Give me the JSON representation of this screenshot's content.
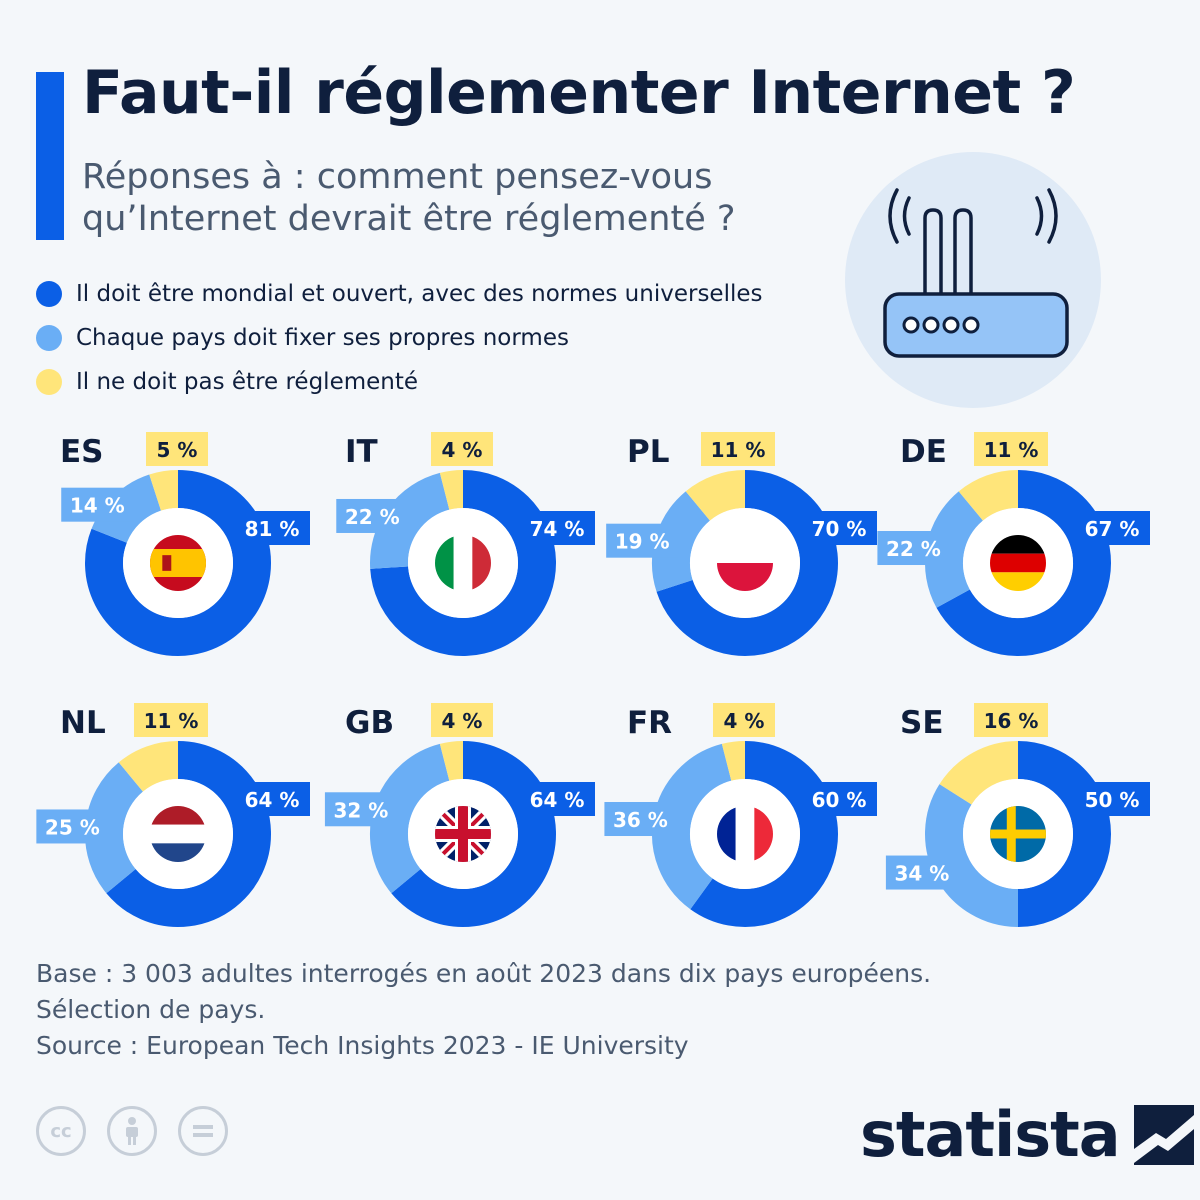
{
  "title": "Faut-il réglementer Internet ?",
  "subtitle": "Réponses à : comment pensez-vous qu’Internet devrait être réglementé ?",
  "colors": {
    "global": "#0b5fe6",
    "national": "#6aaef5",
    "none": "#ffe57a",
    "accent": "#0b5fe6",
    "dark": "#0f1f3d"
  },
  "legend": [
    {
      "label": "Il doit être mondial et ouvert, avec des normes universelles",
      "color": "#0b5fe6"
    },
    {
      "label": "Chaque pays doit fixer ses propres normes",
      "color": "#6aaef5"
    },
    {
      "label": "Il ne doit pas être réglementé",
      "color": "#ffe57a"
    }
  ],
  "chart_data": {
    "type": "pie",
    "series_names": [
      "Il doit être mondial et ouvert, avec des normes universelles",
      "Chaque pays doit fixer ses propres normes",
      "Il ne doit pas être réglementé"
    ],
    "unit": "%",
    "countries": [
      {
        "code": "ES",
        "flag": "spain-flag",
        "values": [
          81,
          14,
          5
        ],
        "labels": [
          "81 %",
          "14 %",
          "5 %"
        ]
      },
      {
        "code": "IT",
        "flag": "italy-flag",
        "values": [
          74,
          22,
          4
        ],
        "labels": [
          "74 %",
          "22 %",
          "4 %"
        ]
      },
      {
        "code": "PL",
        "flag": "poland-flag",
        "values": [
          70,
          19,
          11
        ],
        "labels": [
          "70 %",
          "19 %",
          "11 %"
        ]
      },
      {
        "code": "DE",
        "flag": "germany-flag",
        "values": [
          67,
          22,
          11
        ],
        "labels": [
          "67 %",
          "22 %",
          "11 %"
        ]
      },
      {
        "code": "NL",
        "flag": "netherlands-flag",
        "values": [
          64,
          25,
          11
        ],
        "labels": [
          "64 %",
          "25 %",
          "11 %"
        ]
      },
      {
        "code": "GB",
        "flag": "uk-flag",
        "values": [
          64,
          32,
          4
        ],
        "labels": [
          "64 %",
          "32 %",
          "4 %"
        ]
      },
      {
        "code": "FR",
        "flag": "france-flag",
        "values": [
          60,
          36,
          4
        ],
        "labels": [
          "60 %",
          "36 %",
          "4 %"
        ]
      },
      {
        "code": "SE",
        "flag": "sweden-flag",
        "values": [
          50,
          34,
          16
        ],
        "labels": [
          "50 %",
          "34 %",
          "16 %"
        ]
      }
    ]
  },
  "footnote": {
    "base": "Base : 3 003 adultes interrogés en août 2023 dans dix pays européens.",
    "selection": "Sélection de pays.",
    "source": "Source : European Tech Insights 2023 - IE University"
  },
  "license_icons": [
    "cc-icon",
    "attribution-icon",
    "no-derivatives-icon"
  ],
  "brand": {
    "name": "statista",
    "icon": "statista-logo-icon"
  },
  "illustration": "wifi-router-icon"
}
